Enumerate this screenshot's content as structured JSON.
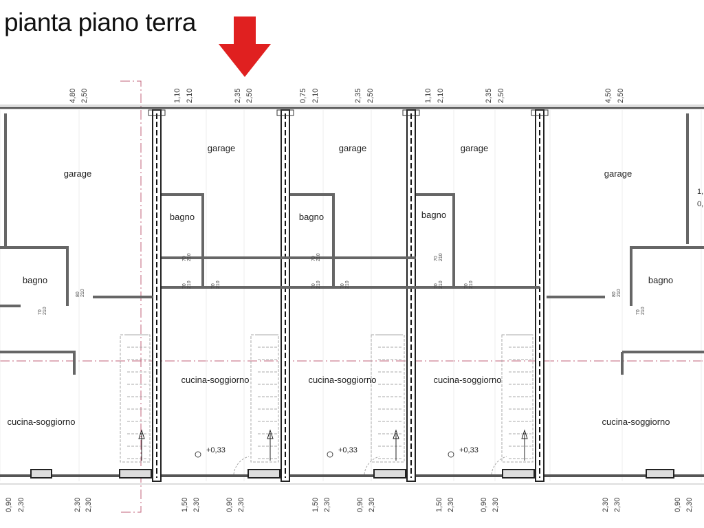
{
  "title": "pianta piano terra",
  "colors": {
    "arrow": "#e02020",
    "section_line": "#c0607a",
    "wall": "#222222"
  },
  "icons": [
    "down-arrow-icon",
    "level-marker-icon",
    "stair-arrow-icon"
  ],
  "rooms": {
    "garage": [
      "garage",
      "garage",
      "garage",
      "garage",
      "garage"
    ],
    "bagno": [
      "bagno",
      "bagno",
      "bagno",
      "bagno",
      "bagno"
    ],
    "cucina": [
      "cucina-soggiorno",
      "cucina-soggiorno",
      "cucina-soggiorno",
      "cucina-soggiorno",
      "cucina-soggiorno"
    ]
  },
  "levels": [
    "+0,33",
    "+0,33",
    "+0,33"
  ],
  "top_dims": [
    [
      "4,80",
      "2,50"
    ],
    [
      "1,10",
      "2,10"
    ],
    [
      "2,35",
      "2,50"
    ],
    [
      "0,75",
      "2,10"
    ],
    [
      "2,35",
      "2,50"
    ],
    [
      "1,10",
      "2,10"
    ],
    [
      "2,35",
      "2,50"
    ],
    [
      "4,50",
      "2,50"
    ]
  ],
  "bottom_dims": [
    [
      "0,90",
      "2,30"
    ],
    [
      "2,30",
      "2,30"
    ],
    [
      "1,50",
      "2,30"
    ],
    [
      "0,90",
      "2,30"
    ],
    [
      "1,50",
      "2,30"
    ],
    [
      "0,90",
      "2,30"
    ],
    [
      "1,50",
      "2,30"
    ],
    [
      "0,90",
      "2,30"
    ],
    [
      "2,30",
      "2,30"
    ],
    [
      "0,90",
      "2,30"
    ]
  ],
  "edge_dims": [
    "1,",
    "0,"
  ],
  "doors": [
    [
      "70",
      "210"
    ],
    [
      "70",
      "210"
    ],
    [
      "70",
      "210"
    ],
    [
      "70",
      "210"
    ],
    [
      "70",
      "210"
    ],
    [
      "70",
      "210"
    ],
    [
      "70",
      "210"
    ],
    [
      "70",
      "210"
    ],
    [
      "70",
      "210"
    ],
    [
      "80",
      "210"
    ],
    [
      "70",
      "210"
    ],
    [
      "80",
      "210"
    ],
    [
      "70",
      "210"
    ]
  ]
}
